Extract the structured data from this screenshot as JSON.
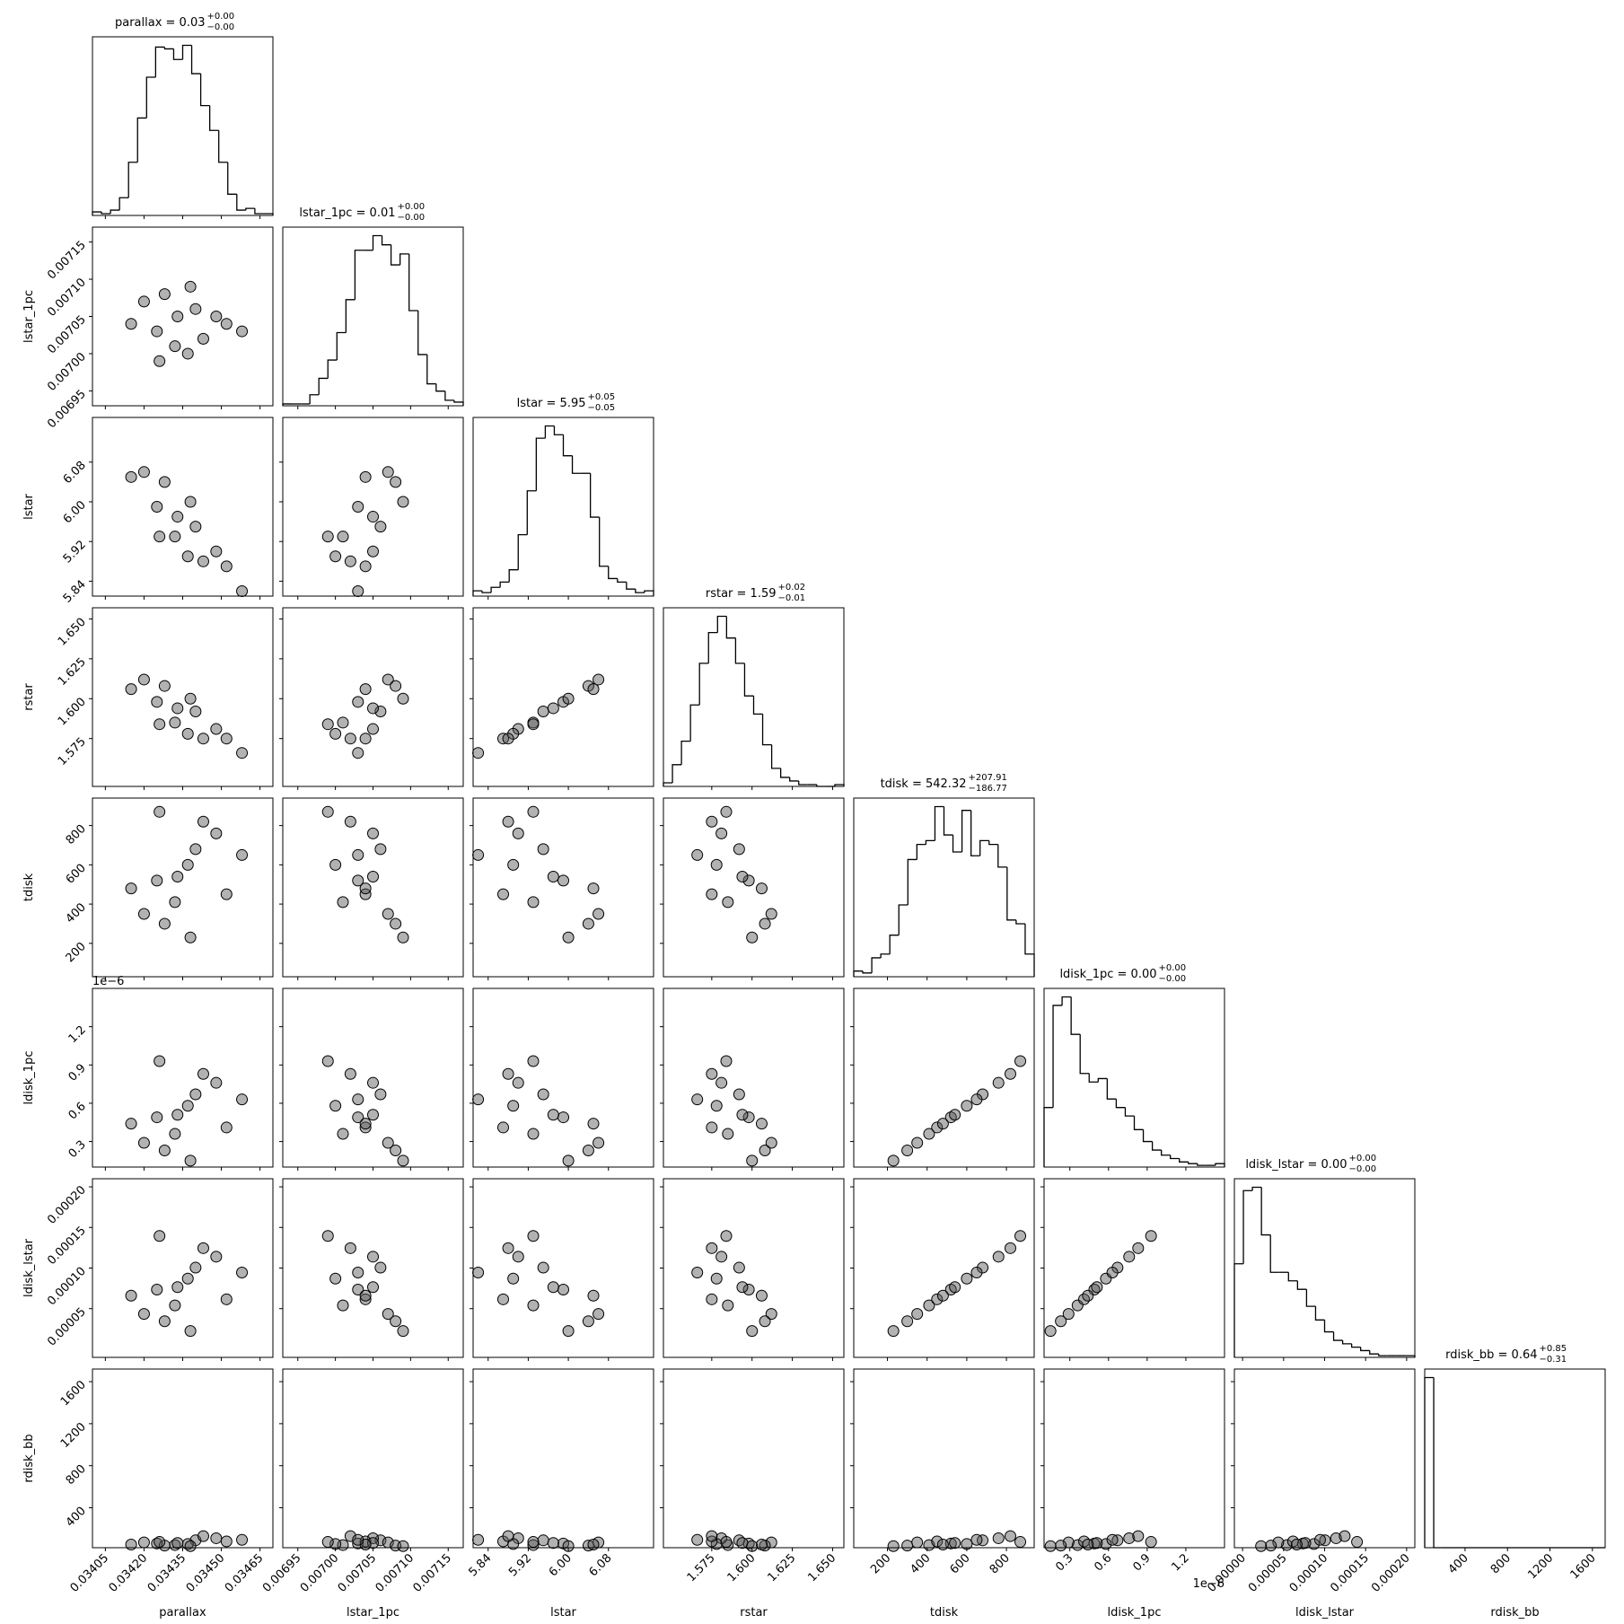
{
  "chart_data": {
    "type": "corner",
    "parameters": [
      {
        "name": "parallax",
        "title": "parallax = 0.03",
        "title_upper": "+0.00",
        "title_lower": "−0.00",
        "lim": [
          0.034,
          0.0347
        ],
        "ticks": [
          0.03405,
          {
            "value": 0.0342,
            "label": "0.03420"
          },
          0.03435,
          {
            "value": 0.0345,
            "label": "0.03450"
          },
          0.03465
        ],
        "bins": [
          0.034,
          0.034035,
          0.03407,
          0.034105,
          0.03414,
          0.034175,
          0.03421,
          0.034245,
          0.03428,
          0.034315,
          0.03435,
          0.034385,
          0.03442,
          0.034455,
          0.03449,
          0.034525,
          0.03456,
          0.034595,
          0.03463,
          0.034665,
          0.0347
        ],
        "counts": [
          2,
          1,
          3,
          10,
          30,
          55,
          78,
          95,
          94,
          88,
          96,
          80,
          62,
          48,
          30,
          12,
          3,
          4,
          1,
          1
        ],
        "samples": [
          0.03425,
          0.0344,
          0.03432,
          0.03448,
          0.0342,
          0.03437,
          0.03452,
          0.03428,
          0.03443,
          0.03433,
          0.03415,
          0.03458,
          0.03438,
          0.03426
        ]
      },
      {
        "name": "lstar_1pc",
        "title": "lstar_1pc = 0.01",
        "title_upper": "+0.00",
        "title_lower": "−0.00",
        "lim": [
          0.00693,
          0.00717
        ],
        "ticks": [
          0.00695,
          {
            "value": 0.007,
            "label": "0.00700"
          },
          0.00705,
          {
            "value": 0.0071,
            "label": "0.00710"
          },
          0.00715
        ],
        "bins": [
          0.00693,
          0.006942,
          0.006954,
          0.006966,
          0.006978,
          0.00699,
          0.007002,
          0.007014,
          0.007026,
          0.007038,
          0.00705,
          0.007062,
          0.007074,
          0.007086,
          0.007098,
          0.00711,
          0.007122,
          0.007134,
          0.007146,
          0.007158,
          0.00717
        ],
        "counts": [
          1,
          1,
          1,
          6,
          15,
          25,
          40,
          58,
          85,
          85,
          93,
          88,
          77,
          83,
          52,
          28,
          12,
          8,
          3,
          2
        ],
        "samples": [
          0.00703,
          0.00706,
          0.00701,
          0.00705,
          0.00707,
          0.007,
          0.00704,
          0.00708,
          0.00702,
          0.00705,
          0.00704,
          0.00703,
          0.00709,
          0.00699
        ]
      },
      {
        "name": "lstar",
        "title": "lstar = 5.95",
        "title_upper": "+0.05",
        "title_lower": "−0.05",
        "lim": [
          5.81,
          6.17
        ],
        "ticks": [
          5.84,
          5.92,
          {
            "value": 6.0,
            "label": "6.00"
          },
          6.08
        ],
        "bins": [
          5.81,
          5.828,
          5.846,
          5.864,
          5.882,
          5.9,
          5.918,
          5.936,
          5.954,
          5.972,
          5.99,
          6.008,
          6.026,
          6.044,
          6.062,
          6.08,
          6.098,
          6.116,
          6.134,
          6.152,
          6.17
        ],
        "counts": [
          3,
          2,
          5,
          8,
          15,
          35,
          60,
          90,
          97,
          92,
          80,
          70,
          70,
          45,
          17,
          10,
          8,
          4,
          2,
          3
        ],
        "samples": [
          5.99,
          5.95,
          5.93,
          5.9,
          6.06,
          5.89,
          5.87,
          6.04,
          5.88,
          5.97,
          6.05,
          5.82,
          6.0,
          5.93
        ]
      },
      {
        "name": "rstar",
        "title": "rstar = 1.59",
        "title_upper": "+0.02",
        "title_lower": "−0.01",
        "lim": [
          1.545,
          1.657
        ],
        "ticks": [
          1.575,
          {
            "value": 1.6,
            "label": "1.600"
          },
          1.625,
          {
            "value": 1.65,
            "label": "1.650"
          }
        ],
        "bins": [
          1.545,
          1.5506,
          1.5562,
          1.5618,
          1.5674,
          1.573,
          1.5786,
          1.5842,
          1.5898,
          1.5954,
          1.601,
          1.6066,
          1.6122,
          1.6178,
          1.6234,
          1.629,
          1.6346,
          1.6402,
          1.6458,
          1.6514,
          1.657
        ],
        "counts": [
          2,
          12,
          25,
          45,
          68,
          85,
          94,
          82,
          68,
          50,
          40,
          23,
          10,
          5,
          3,
          1,
          1,
          0,
          0,
          1
        ],
        "samples": [
          1.598,
          1.592,
          1.585,
          1.581,
          1.612,
          1.578,
          1.575,
          1.608,
          1.575,
          1.594,
          1.606,
          1.566,
          1.6,
          1.584
        ]
      },
      {
        "name": "tdisk",
        "title": "tdisk = 542.32",
        "title_upper": "+207.91",
        "title_lower": "−186.77",
        "lim": [
          30,
          940
        ],
        "ticks": [
          200,
          400,
          600,
          800
        ],
        "bins": [
          30,
          75.5,
          121,
          166.5,
          212,
          257.5,
          303,
          348.5,
          394,
          439.5,
          485,
          530.5,
          576,
          621.5,
          667,
          712.5,
          758,
          803.5,
          849,
          894.5,
          940
        ],
        "counts": [
          3,
          2,
          10,
          12,
          22,
          38,
          62,
          70,
          72,
          90,
          75,
          66,
          88,
          64,
          72,
          70,
          58,
          30,
          28,
          12
        ],
        "samples": [
          520,
          680,
          410,
          760,
          350,
          600,
          450,
          300,
          820,
          540,
          480,
          650,
          230,
          870
        ]
      },
      {
        "name": "ldisk_1pc",
        "title": "ldisk_1pc = 0.00",
        "title_upper": "+0.00",
        "title_lower": "−0.00",
        "lim": [
          1e-07,
          1.5e-06
        ],
        "offset_label": "1e−6",
        "ticks": [
          {
            "value": 3e-07,
            "label": "0.3"
          },
          {
            "value": 6e-07,
            "label": "0.6"
          },
          {
            "value": 9e-07,
            "label": "0.9"
          },
          {
            "value": 1.2e-06,
            "label": "1.2"
          }
        ],
        "bins": [
          1e-07,
          1.7e-07,
          2.4e-07,
          3.1e-07,
          3.8e-07,
          4.5e-07,
          5.2e-07,
          5.9e-07,
          6.6e-07,
          7.3e-07,
          8e-07,
          8.7e-07,
          9.4e-07,
          1.01e-06,
          1.08e-06,
          1.15e-06,
          1.22e-06,
          1.29e-06,
          1.36e-06,
          1.43e-06,
          1.5e-06
        ],
        "counts": [
          35,
          95,
          100,
          78,
          55,
          50,
          52,
          40,
          35,
          30,
          22,
          15,
          10,
          7,
          5,
          3,
          2,
          1,
          1,
          2
        ],
        "samples": [
          4.9e-07,
          6.7e-07,
          3.6e-07,
          7.6e-07,
          2.9e-07,
          5.8e-07,
          4.1e-07,
          2.3e-07,
          8.3e-07,
          5.1e-07,
          4.4e-07,
          6.3e-07,
          1.5e-07,
          9.3e-07
        ]
      },
      {
        "name": "ldisk_lstar",
        "title": "ldisk_lstar = 0.00",
        "title_upper": "+0.00",
        "title_lower": "−0.00",
        "lim": [
          -1e-05,
          0.00021
        ],
        "ticks": [
          {
            "value": 0,
            "label": "0.00000"
          },
          {
            "value": 5e-05,
            "label": "0.00005"
          },
          {
            "value": 0.0001,
            "label": "0.00010"
          },
          {
            "value": 0.00015,
            "label": "0.00015"
          },
          {
            "value": 0.0002,
            "label": "0.00020"
          }
        ],
        "yticks": [
          {
            "value": 5e-05,
            "label": "0.00005"
          },
          {
            "value": 0.0001,
            "label": "0.00010"
          },
          {
            "value": 0.00015,
            "label": "0.00015"
          },
          {
            "value": 0.0002,
            "label": "0.00020"
          }
        ],
        "bins": [
          -1e-05,
          1e-06,
          1.2e-05,
          2.3e-05,
          3.4e-05,
          4.5e-05,
          5.6e-05,
          6.7e-05,
          7.8e-05,
          8.9e-05,
          0.0001,
          0.000111,
          0.000122,
          0.000133,
          0.000144,
          0.000155,
          0.000166,
          0.000177,
          0.000188,
          0.000199,
          0.00021
        ],
        "counts": [
          55,
          98,
          100,
          72,
          50,
          50,
          45,
          40,
          30,
          22,
          15,
          10,
          8,
          6,
          4,
          2,
          1,
          1,
          1,
          1
        ],
        "samples": [
          7.35e-05,
          0.0001005,
          5.4e-05,
          0.000114,
          4.35e-05,
          8.7e-05,
          6.15e-05,
          3.45e-05,
          0.0001245,
          7.65e-05,
          6.6e-05,
          9.45e-05,
          2.25e-05,
          0.0001395
        ]
      },
      {
        "name": "rdisk_bb",
        "title": "rdisk_bb = 0.64",
        "title_upper": "+0.85",
        "title_lower": "−0.31",
        "lim": [
          20,
          1720
        ],
        "ticks": [
          400,
          800,
          1200,
          1600
        ],
        "bins": [
          20,
          105,
          190,
          275,
          360,
          445,
          530,
          615,
          700,
          785,
          870,
          955,
          1040,
          1125,
          1210,
          1295,
          1380,
          1465,
          1550,
          1635,
          1720
        ],
        "counts": [
          100,
          0,
          0,
          0,
          0,
          0,
          0,
          0,
          0,
          0,
          0,
          0,
          0,
          0,
          0,
          0,
          0,
          0,
          0,
          0
        ],
        "samples": [
          60,
          90,
          45,
          110,
          70,
          55,
          80,
          40,
          130,
          65,
          50,
          95,
          35,
          75
        ]
      }
    ]
  }
}
